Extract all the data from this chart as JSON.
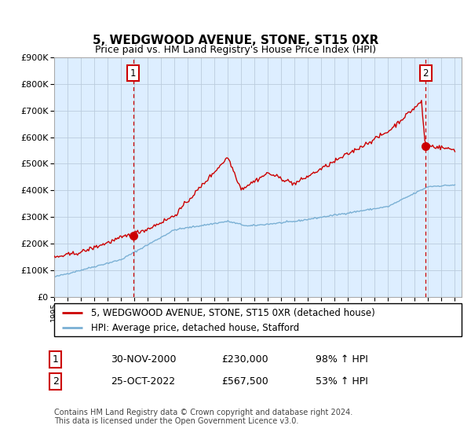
{
  "title": "5, WEDGWOOD AVENUE, STONE, ST15 0XR",
  "subtitle": "Price paid vs. HM Land Registry's House Price Index (HPI)",
  "ylim": [
    0,
    900000
  ],
  "xlim_start": 1995.0,
  "xlim_end": 2025.5,
  "sale1_date": 2000.917,
  "sale1_price": 230000,
  "sale1_label": "1",
  "sale2_date": 2022.81,
  "sale2_price": 567500,
  "sale2_label": "2",
  "legend_line1": "5, WEDGWOOD AVENUE, STONE, ST15 0XR (detached house)",
  "legend_line2": "HPI: Average price, detached house, Stafford",
  "table_row1": [
    "1",
    "30-NOV-2000",
    "£230,000",
    "98% ↑ HPI"
  ],
  "table_row2": [
    "2",
    "25-OCT-2022",
    "£567,500",
    "53% ↑ HPI"
  ],
  "footnote": "Contains HM Land Registry data © Crown copyright and database right 2024.\nThis data is licensed under the Open Government Licence v3.0.",
  "line_color_red": "#cc0000",
  "line_color_blue": "#7ab0d4",
  "vline_color": "#cc0000",
  "background_color": "#ffffff",
  "chart_bg_color": "#ddeeff",
  "grid_color": "#bbccdd"
}
